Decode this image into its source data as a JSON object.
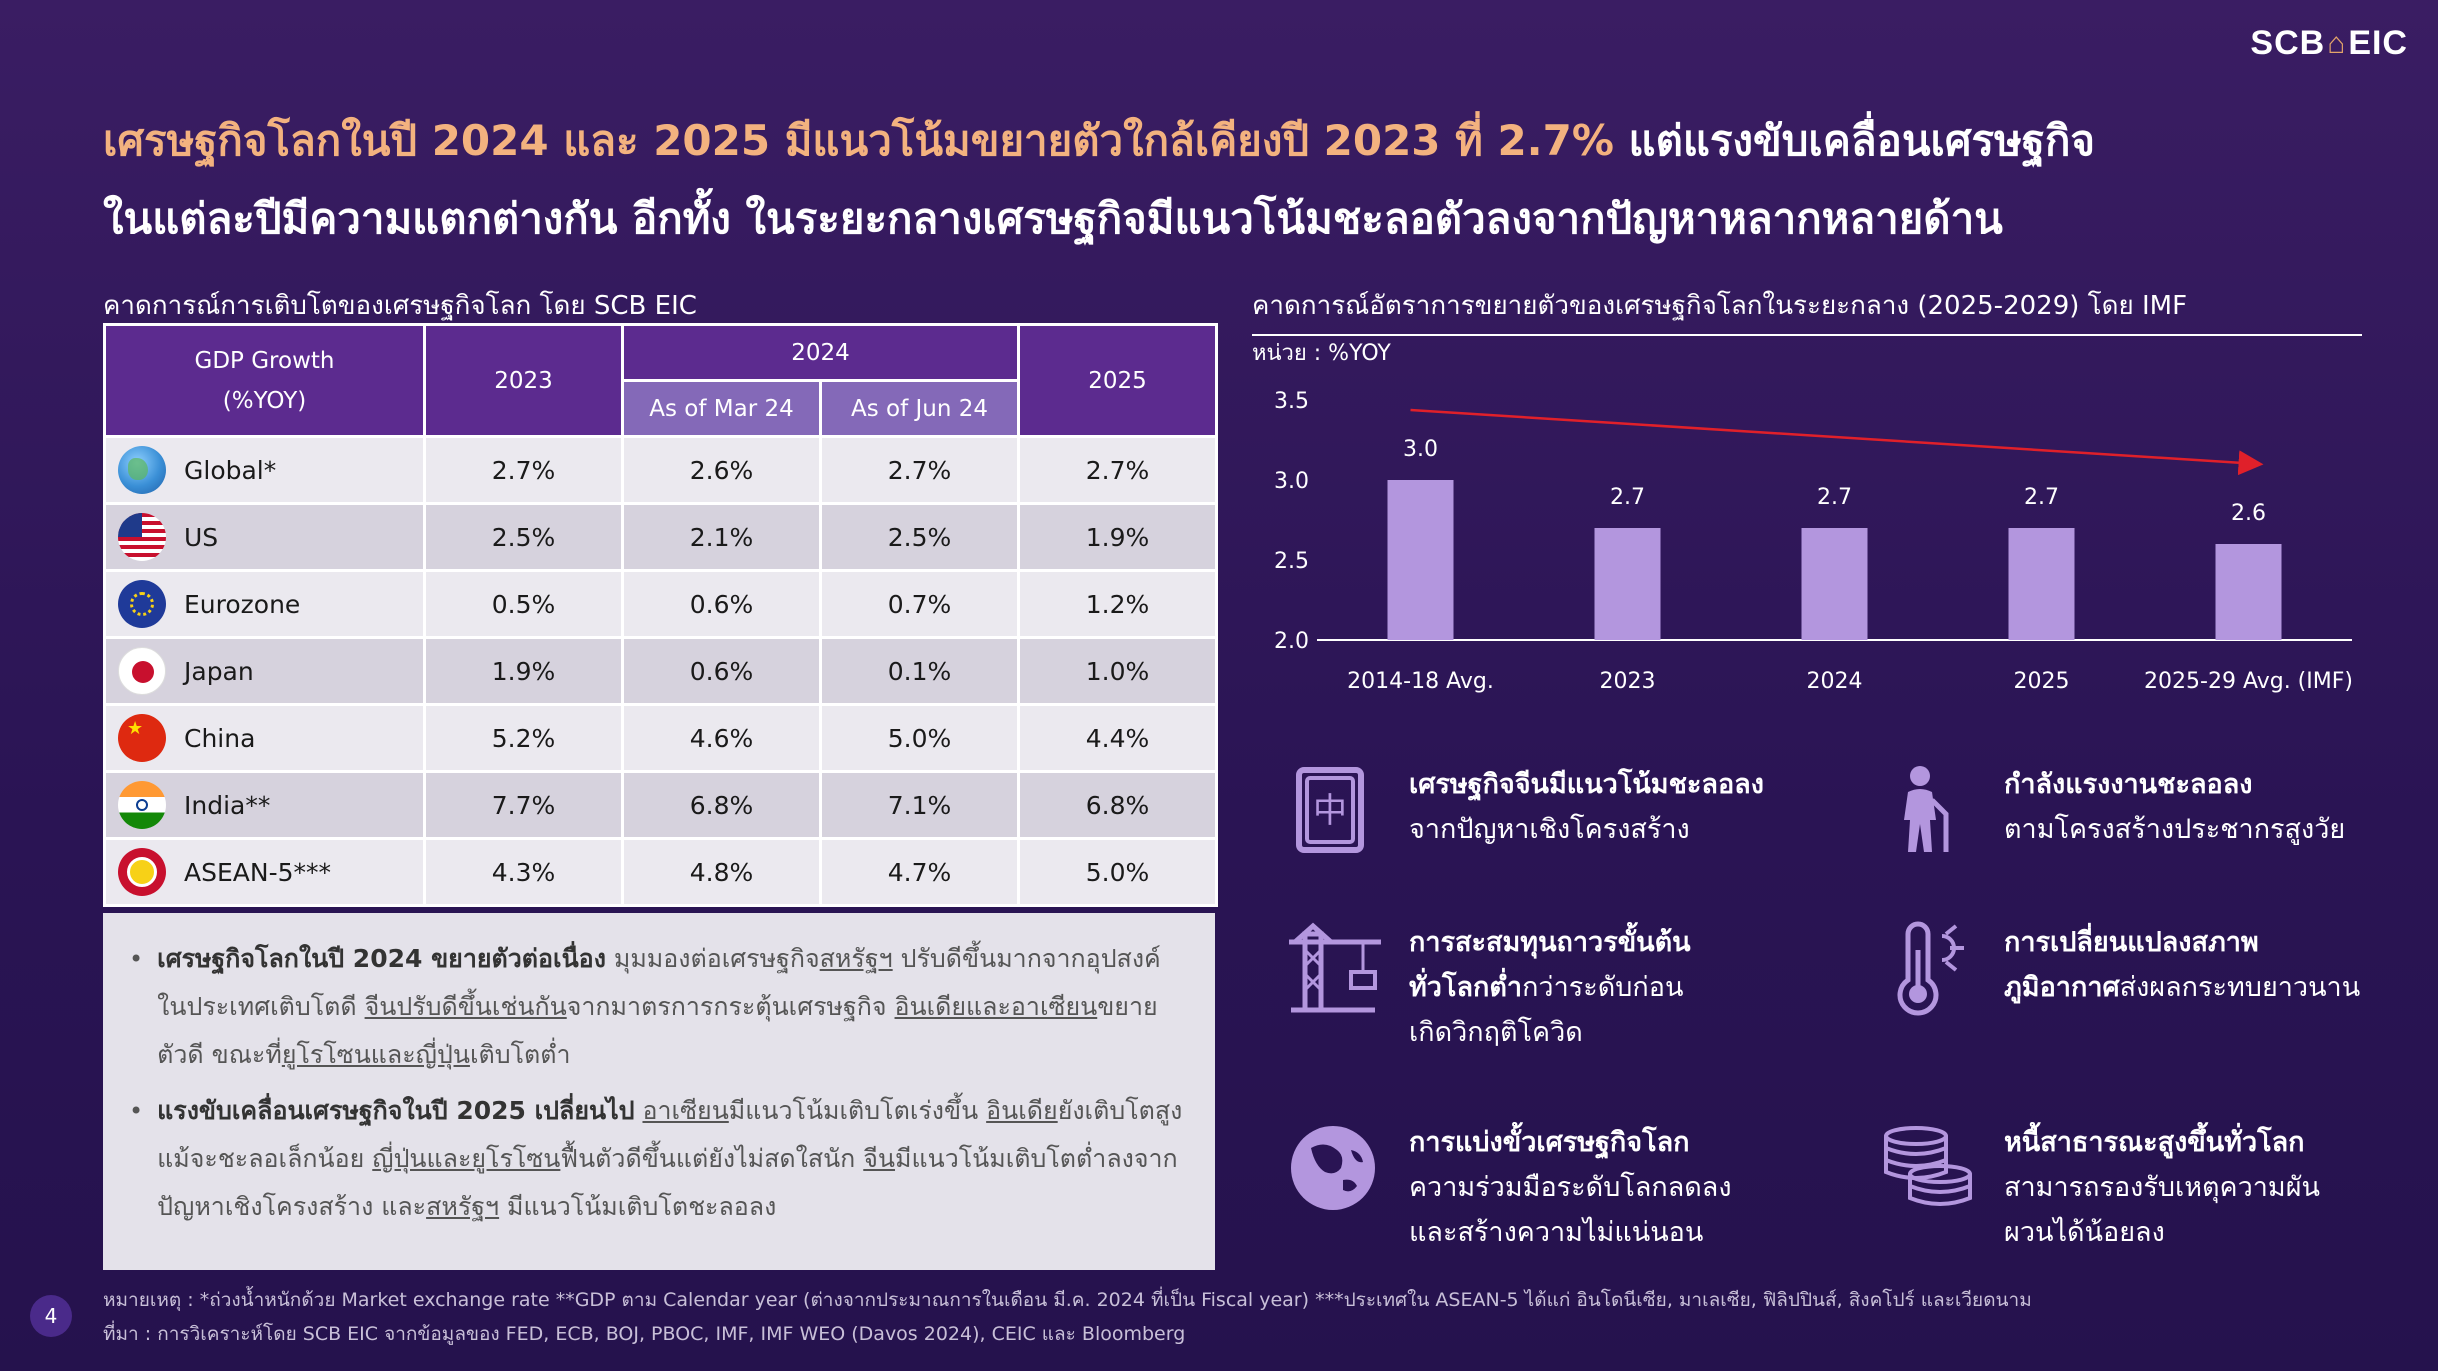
{
  "logo": {
    "scb": "SCB",
    "eic": "EIC"
  },
  "headline": {
    "part1": "เศรษฐกิจโลกในปี 2024 และ 2025 มีแนวโน้มขยายตัวใกล้เคียงปี 2023 ที่ 2.7%",
    "part2": " แต่แรงขับเคลื่อนเศรษฐกิจ",
    "line2": "ในแต่ละปีมีความแตกต่างกัน อีกทั้ง ในระยะกลางเศรษฐกิจมีแนวโน้มชะลอตัวลงจากปัญหาหลากหลายด้าน"
  },
  "table_section_title": "คาดการณ์การเติบโตของเศรษฐกิจโลก โดย SCB EIC",
  "table": {
    "header_col1": "GDP Growth",
    "header_col1b": "(%YOY)",
    "h2023": "2023",
    "h2024": "2024",
    "h2025": "2025",
    "sub_mar": "As of Mar 24",
    "sub_jun": "As of Jun 24",
    "rows": [
      {
        "country": "Global*",
        "flag": "globe-icon",
        "y2023": "2.7%",
        "mar24": "2.6%",
        "jun24": "2.7%",
        "y2025": "2.7%"
      },
      {
        "country": "US",
        "flag": "us-flag-icon",
        "y2023": "2.5%",
        "mar24": "2.1%",
        "jun24": "2.5%",
        "y2025": "1.9%"
      },
      {
        "country": "Eurozone",
        "flag": "eu-flag-icon",
        "y2023": "0.5%",
        "mar24": "0.6%",
        "jun24": "0.7%",
        "y2025": "1.2%"
      },
      {
        "country": "Japan",
        "flag": "japan-flag-icon",
        "y2023": "1.9%",
        "mar24": "0.6%",
        "jun24": "0.1%",
        "y2025": "1.0%"
      },
      {
        "country": "China",
        "flag": "china-flag-icon",
        "y2023": "5.2%",
        "mar24": "4.6%",
        "jun24": "5.0%",
        "y2025": "4.4%"
      },
      {
        "country": "India**",
        "flag": "india-flag-icon",
        "y2023": "7.7%",
        "mar24": "6.8%",
        "jun24": "7.1%",
        "y2025": "6.8%"
      },
      {
        "country": "ASEAN-5***",
        "flag": "asean-flag-icon",
        "y2023": "4.3%",
        "mar24": "4.8%",
        "jun24": "4.7%",
        "y2025": "5.0%"
      }
    ]
  },
  "bullets": {
    "b1": {
      "bold": "เศรษฐกิจโลกในปี 2024 ขยายตัวต่อเนื่อง",
      "t1": " มุมมองต่อเศรษฐกิจ",
      "u1": "สหรัฐฯ",
      "t2": " ปรับดีขึ้นมากจากอุปสงค์ในประเทศเติบโตดี ",
      "u2": "จีนปรับดีขึ้นเช่นกัน",
      "t3": "จากมาตรการกระตุ้นเศรษฐกิจ ",
      "u3": "อินเดียและอาเซียน",
      "t4": "ขยายตัวดี ขณะที่",
      "u4": "ยูโรโซนและญี่ปุ่น",
      "t5": "เติบโตต่ำ"
    },
    "b2": {
      "bold": "แรงขับเคลื่อนเศรษฐกิจในปี 2025 เปลี่ยนไป",
      "t0": " ",
      "u1": "อาเซียน",
      "t1": "มีแนวโน้มเติบโตเร่งขึ้น ",
      "u2": "อินเดีย",
      "t2": "ยังเติบโตสูงแม้จะชะลอเล็กน้อย ",
      "u3": "ญี่ปุ่นและยูโรโซน",
      "t3": "ฟื้นตัวดีขึ้นแต่ยังไม่สดใสนัก ",
      "u4": "จีน",
      "t4": "มีแนวโน้มเติบโตต่ำลงจากปัญหาเชิงโครงสร้าง และ",
      "u5": "สหรัฐฯ",
      "t5": " มีแนวโน้มเติบโตชะลอลง"
    }
  },
  "chart_section_title": "คาดการณ์อัตราการขยายตัวของเศรษฐกิจโลกในระยะกลาง (2025-2029) โดย IMF",
  "chart_unit": "หน่วย : %YOY",
  "chart_data": {
    "type": "bar",
    "categories": [
      "2014-18 Avg.",
      "2023",
      "2024",
      "2025",
      "2025-29 Avg. (IMF)"
    ],
    "values": [
      3.0,
      2.7,
      2.7,
      2.7,
      2.6
    ],
    "value_labels": [
      "3.0",
      "2.7",
      "2.7",
      "2.7",
      "2.6"
    ],
    "yticks": [
      "2.0",
      "2.5",
      "3.0",
      "3.5"
    ],
    "ylim": [
      2.0,
      3.5
    ],
    "bar_color": "#b396de",
    "trend_color": "#e0202a",
    "title": "",
    "xlabel": "",
    "ylabel": ""
  },
  "drivers": [
    {
      "icon": "china-tile-icon",
      "bold": "เศรษฐกิจจีนมีแนวโน้มชะลอลง",
      "line2": "จากปัญหาเชิงโครงสร้าง",
      "line3": ""
    },
    {
      "icon": "elderly-person-icon",
      "bold": "กำลังแรงงานชะลอลง",
      "line2": "ตามโครงสร้างประชากรสูงวัย",
      "line3": ""
    },
    {
      "icon": "construction-crane-icon",
      "bold": "การสะสมทุนถาวรขั้นต้น",
      "bold2": "ทั่วโลกต่ำ",
      "line2": "กว่าระดับก่อน",
      "line3": "เกิดวิกฤติโควิด"
    },
    {
      "icon": "thermometer-sun-icon",
      "bold": "การเปลี่ยนแปลงสภาพ",
      "bold2": "ภูมิอากาศ",
      "line2": "ส่งผลกระทบยาวนาน",
      "line3": ""
    },
    {
      "icon": "globe-asia-icon",
      "bold": "การแบ่งขั้วเศรษฐกิจโลก",
      "line2": "ความร่วมมือระดับโลกลดลง",
      "line3": "และสร้างความไม่แน่นอน"
    },
    {
      "icon": "coin-stack-icon",
      "bold": "หนี้สาธารณะสูงขึ้นทั่วโลก",
      "line2": "สามารถรองรับเหตุความผัน",
      "line3": "ผวนได้น้อยลง"
    }
  ],
  "footnote": {
    "line1": "หมายเหตุ : *ถ่วงน้ำหนักด้วย Market exchange rate **GDP ตาม Calendar year (ต่างจากประมาณการในเดือน มี.ค. 2024 ที่เป็น Fiscal year) ***ประเทศใน ASEAN-5 ได้แก่ อินโดนีเซีย, มาเลเซีย, ฟิลิปปินส์, สิงคโปร์ และเวียดนาม",
    "line2": "ที่มา : การวิเคราะห์โดย SCB EIC จากข้อมูลของ FED, ECB, BOJ, PBOC, IMF, IMF WEO (Davos 2024), CEIC และ Bloomberg"
  },
  "page_number": "4"
}
